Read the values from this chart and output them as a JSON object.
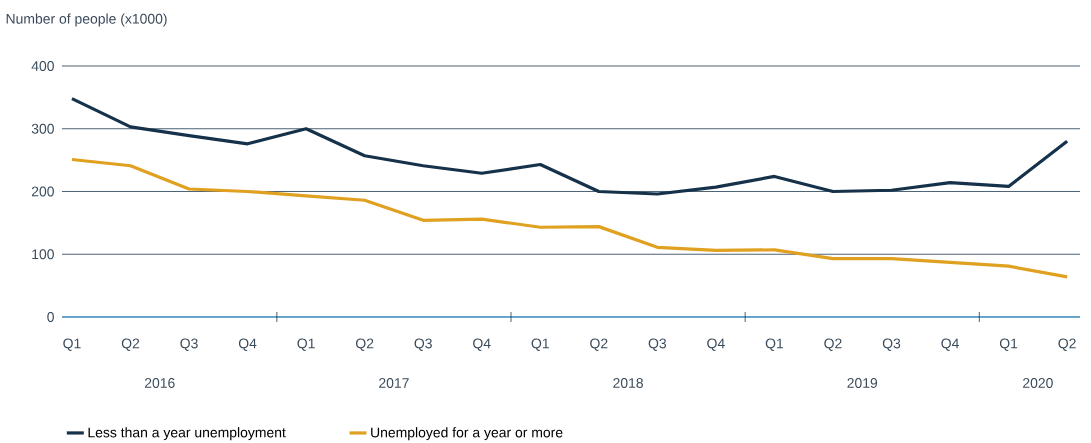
{
  "chart_data": {
    "type": "line",
    "ylabel": "Number of people (x1000)",
    "categories": [
      "Q1",
      "Q2",
      "Q3",
      "Q4",
      "Q1",
      "Q2",
      "Q3",
      "Q4",
      "Q1",
      "Q2",
      "Q3",
      "Q4",
      "Q1",
      "Q2",
      "Q3",
      "Q4",
      "Q1",
      "Q2"
    ],
    "annotations": [
      "2016",
      "2017",
      "2018",
      "2019",
      "2020"
    ],
    "series": [
      {
        "name": "Less than a year unemployment",
        "color": "#16324a",
        "values": [
          348,
          303,
          289,
          276,
          300,
          257,
          241,
          229,
          243,
          200,
          196,
          207,
          224,
          200,
          202,
          214,
          208,
          280
        ]
      },
      {
        "name": "Unemployed for a year or more",
        "color": "#e0a020",
        "values": [
          251,
          241,
          204,
          200,
          193,
          186,
          154,
          156,
          143,
          144,
          111,
          106,
          107,
          93,
          93,
          87,
          81,
          64
        ]
      }
    ],
    "ylim": [
      0,
      400
    ],
    "yticks": [
      0,
      100,
      200,
      300,
      400
    ],
    "grid": "y",
    "legend": "bottom"
  }
}
